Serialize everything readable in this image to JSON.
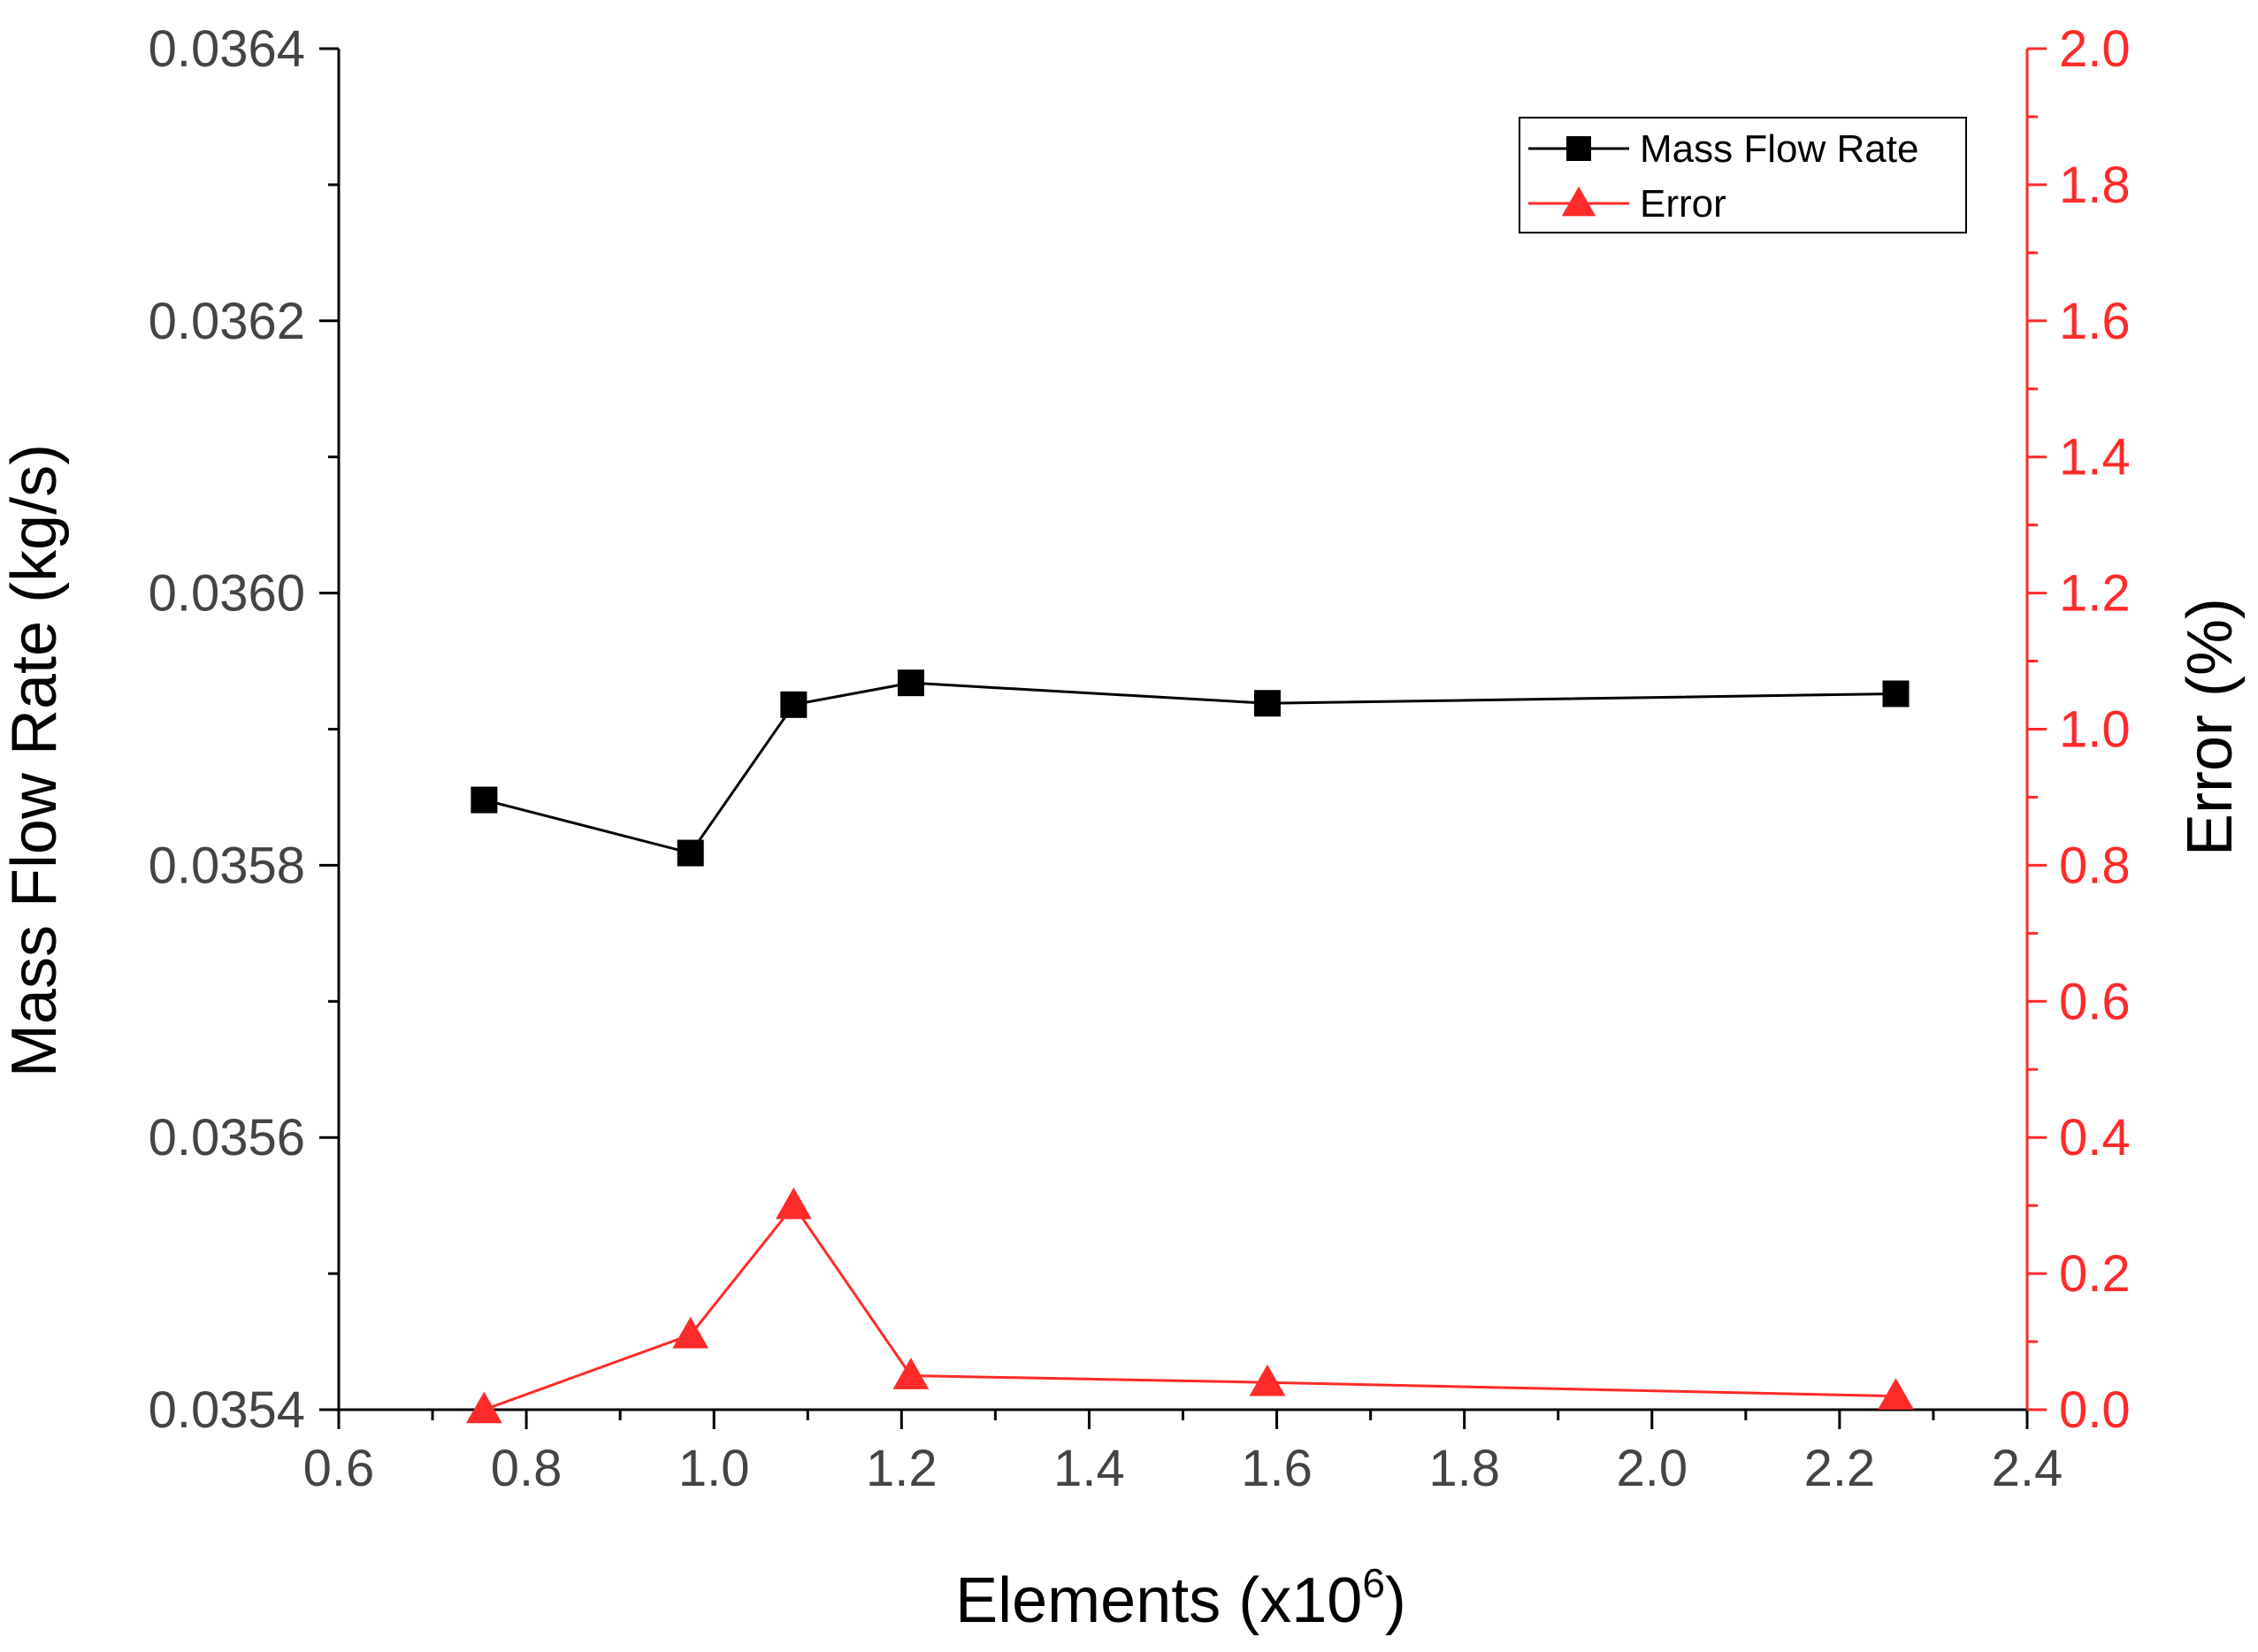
{
  "chart_data": {
    "type": "line",
    "title": "",
    "xlabel": "Elements (x10",
    "xlabel_superscript": "6",
    "xlabel_suffix": ")",
    "ylabel_left": "Mass Flow Rate (kg/s)",
    "ylabel_right": "Error (%)",
    "xlim": [
      0.6,
      2.4
    ],
    "ylim_left": [
      0.0354,
      0.0364
    ],
    "ylim_right": [
      0.0,
      2.0
    ],
    "x_ticks": [
      "0.6",
      "0.8",
      "1.0",
      "1.2",
      "1.4",
      "1.6",
      "1.8",
      "2.0",
      "2.2",
      "2.4"
    ],
    "y_left_ticks": [
      "0.0354",
      "0.0356",
      "0.0358",
      "0.0360",
      "0.0362",
      "0.0364"
    ],
    "y_right_ticks": [
      "0.0",
      "0.2",
      "0.4",
      "0.6",
      "0.8",
      "1.0",
      "1.2",
      "1.4",
      "1.6",
      "1.8",
      "2.0"
    ],
    "legend_position": "top-right",
    "grid": false,
    "series": [
      {
        "name": "Mass Flow Rate",
        "axis": "left",
        "color": "#000000",
        "marker": "square",
        "x": [
          0.755,
          0.975,
          1.085,
          1.21,
          1.59,
          2.26
        ],
        "values": [
          0.035848,
          0.035809,
          0.035918,
          0.035934,
          0.035919,
          0.035926
        ]
      },
      {
        "name": "Error",
        "axis": "right",
        "color": "#ff2a2a",
        "marker": "triangle",
        "x": [
          0.755,
          0.975,
          1.085,
          1.21,
          1.59,
          2.26
        ],
        "values": [
          0.0,
          0.11,
          0.3,
          0.05,
          0.04,
          0.02
        ]
      }
    ]
  }
}
